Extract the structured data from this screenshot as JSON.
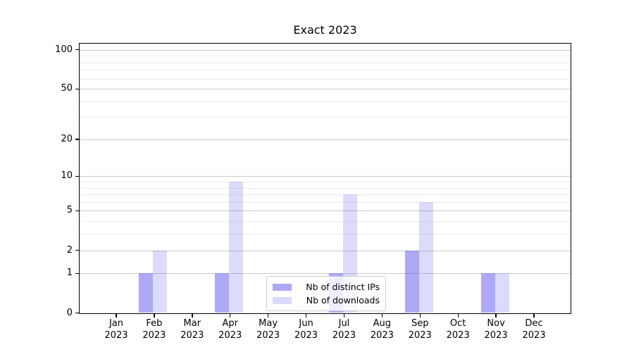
{
  "figure": {
    "title": "Exact 2023"
  },
  "chart_data": {
    "type": "bar",
    "title": "Exact 2023",
    "x_months": [
      "Jan",
      "Feb",
      "Mar",
      "Apr",
      "May",
      "Jun",
      "Jul",
      "Aug",
      "Sep",
      "Oct",
      "Nov",
      "Dec"
    ],
    "x_year": "2023",
    "series": [
      {
        "name": "Nb of distinct IPs",
        "color": "rgba(107,99,240,0.55)",
        "values": [
          0,
          1,
          0,
          1,
          0,
          0,
          1,
          0,
          2,
          0,
          1,
          0
        ]
      },
      {
        "name": "Nb of downloads",
        "color": "rgba(107,99,240,0.23)",
        "values": [
          0,
          2,
          0,
          9,
          0,
          0,
          7,
          0,
          6,
          0,
          1,
          0
        ]
      }
    ],
    "yscale": "log1p",
    "ylim": [
      0,
      112
    ],
    "y_tick_labels": [
      0,
      1,
      2,
      5,
      10,
      20,
      50,
      100
    ],
    "y_minor_ticks": [
      3,
      4,
      6,
      7,
      8,
      9,
      30,
      40,
      60,
      70,
      80,
      90
    ],
    "grid": "horizontal-major-and-minor",
    "legend_position": "lower-center-inside",
    "colors": {
      "grid_major": "#c9c9c9",
      "grid_minor": "#eaeaea",
      "axis": "#000000",
      "background": "#ffffff"
    }
  }
}
